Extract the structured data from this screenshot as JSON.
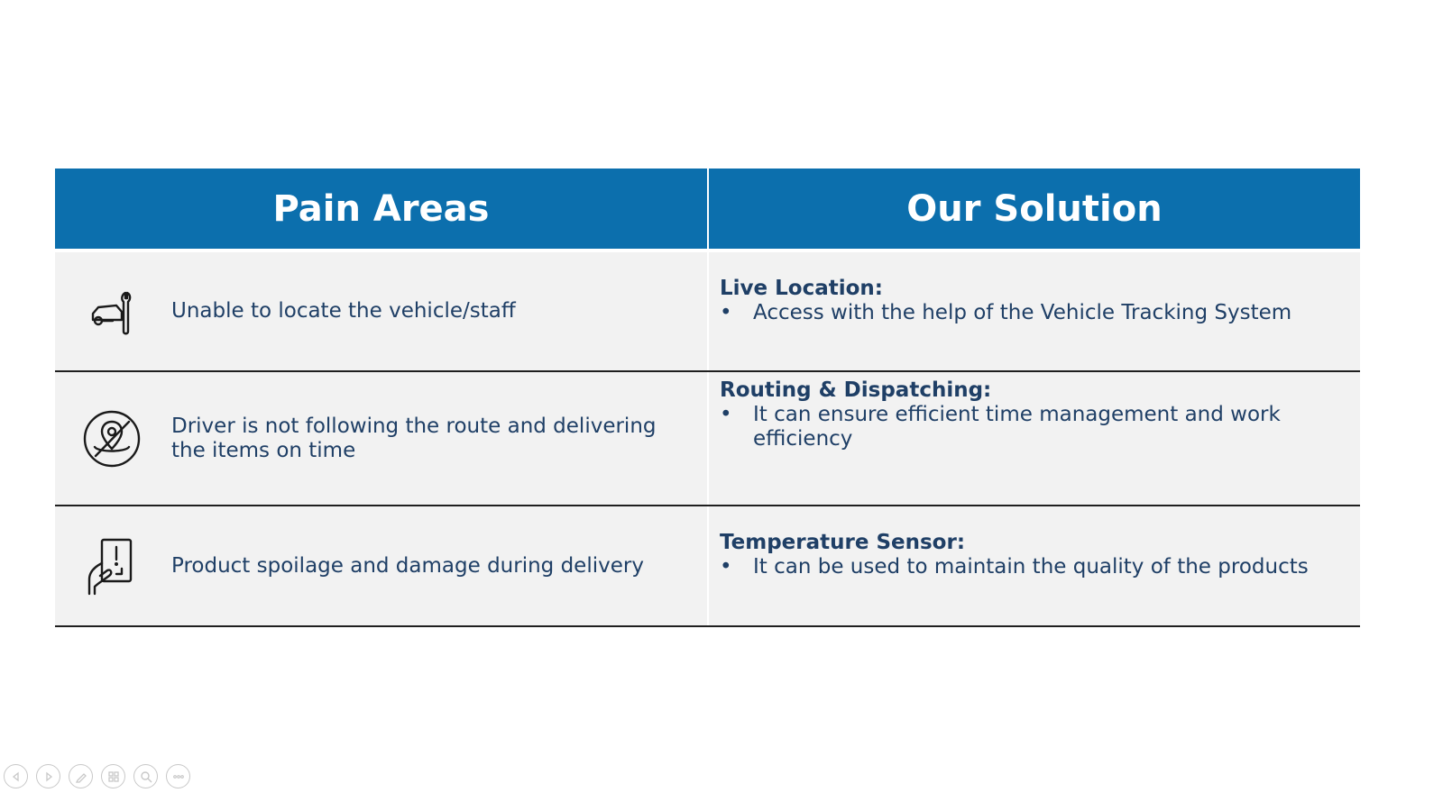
{
  "table": {
    "headers": {
      "pain": "Pain Areas",
      "solution": "Our Solution"
    },
    "rows": [
      {
        "pain_icon": "car-wrench-icon",
        "pain_text": "Unable to locate the vehicle/staff",
        "solution_title": "Live Location:",
        "solution_bullet": "Access with the help of the Vehicle Tracking System"
      },
      {
        "pain_icon": "no-location-icon",
        "pain_text": "Driver is not following the route and delivering the items on time",
        "solution_title": "Routing & Dispatching:",
        "solution_bullet": "It can ensure efficient time management and work efficiency"
      },
      {
        "pain_icon": "hand-device-alert-icon",
        "pain_text": "Product spoilage and damage during delivery",
        "solution_title": "Temperature Sensor:",
        "solution_bullet": "It can be used to maintain the quality of the products"
      }
    ],
    "bullet_glyph": "•"
  },
  "controls": [
    {
      "icon": "previous-slide-icon"
    },
    {
      "icon": "next-slide-icon"
    },
    {
      "icon": "pen-icon"
    },
    {
      "icon": "slides-grid-icon"
    },
    {
      "icon": "zoom-icon"
    },
    {
      "icon": "more-options-icon"
    }
  ],
  "colors": {
    "header_bg": "#0c6fad",
    "row_bg": "#f2f2f2",
    "text": "#1f3f66"
  }
}
